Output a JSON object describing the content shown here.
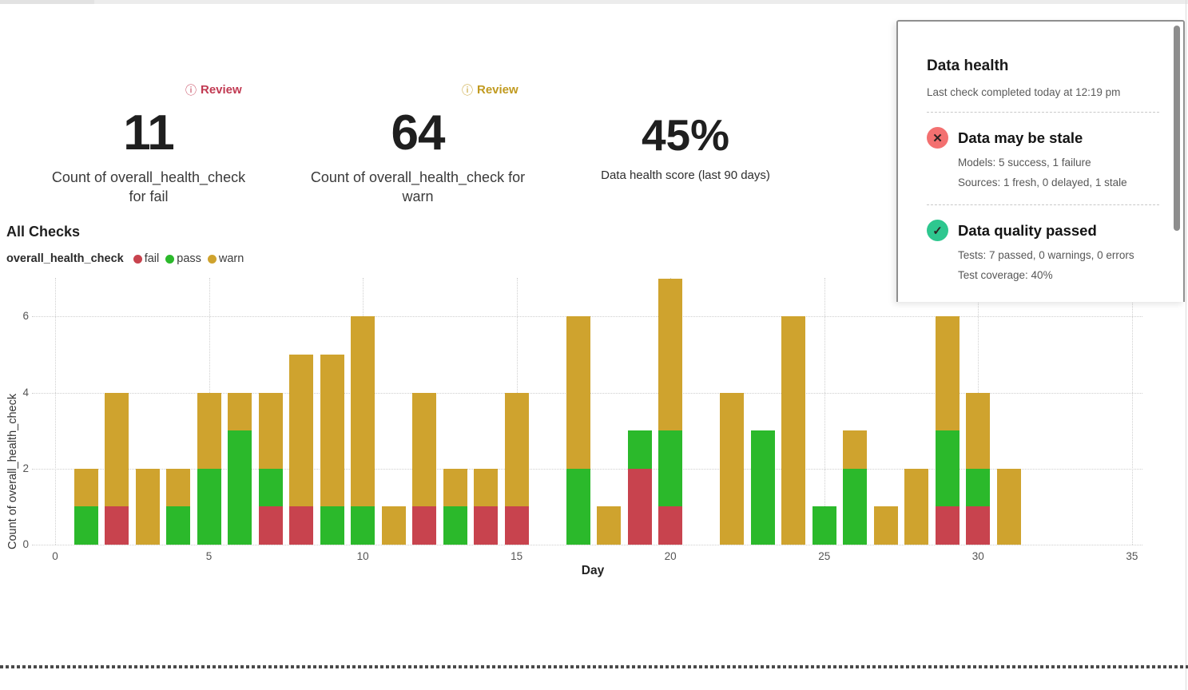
{
  "kpis": [
    {
      "badge": "Review",
      "badge_color": "#c13a52",
      "value": "11",
      "caption": "Count of overall_health_check for fail"
    },
    {
      "badge": "Review",
      "badge_color": "#c19a1f",
      "value": "64",
      "caption": "Count of overall_health_check for warn"
    },
    {
      "value": "45%",
      "caption": "Data health score (last 90 days)"
    }
  ],
  "section": {
    "title": "All Checks",
    "legend_title": "overall_health_check",
    "legend": [
      {
        "label": "fail",
        "color": "#c8434e"
      },
      {
        "label": "pass",
        "color": "#2bb92b"
      },
      {
        "label": "warn",
        "color": "#cfa32e"
      }
    ]
  },
  "chart_data": {
    "type": "bar",
    "stacked": true,
    "title": "All Checks",
    "xlabel": "Day",
    "ylabel": "Count of overall_health_check",
    "x": [
      1,
      2,
      3,
      4,
      5,
      6,
      7,
      8,
      9,
      10,
      11,
      12,
      13,
      14,
      15,
      16,
      17,
      18,
      19,
      20,
      21,
      22,
      23,
      24,
      25,
      26,
      27,
      28,
      29,
      30,
      31
    ],
    "series": [
      {
        "name": "fail",
        "color": "#c8434e",
        "values": [
          0,
          1,
          0,
          0,
          0,
          0,
          1,
          1,
          0,
          0,
          0,
          1,
          0,
          1,
          1,
          0,
          0,
          0,
          2,
          1,
          0,
          0,
          0,
          0,
          0,
          0,
          0,
          0,
          1,
          1,
          0
        ]
      },
      {
        "name": "pass",
        "color": "#2bb92b",
        "values": [
          1,
          0,
          0,
          1,
          2,
          3,
          1,
          0,
          1,
          1,
          0,
          0,
          1,
          0,
          0,
          0,
          2,
          0,
          1,
          2,
          0,
          0,
          3,
          0,
          1,
          2,
          0,
          0,
          2,
          1,
          0
        ]
      },
      {
        "name": "warn",
        "color": "#cfa32e",
        "values": [
          1,
          3,
          2,
          1,
          2,
          1,
          2,
          4,
          4,
          5,
          1,
          3,
          1,
          1,
          3,
          0,
          4,
          1,
          0,
          4,
          0,
          4,
          0,
          6,
          0,
          1,
          1,
          2,
          3,
          2,
          2
        ]
      }
    ],
    "xticks": [
      0,
      5,
      10,
      15,
      20,
      25,
      30,
      35
    ],
    "yticks": [
      0,
      2,
      4,
      6
    ],
    "xlim": [
      0,
      35.5
    ],
    "ylim": [
      0,
      7.2
    ],
    "grid": "dotted",
    "legend_position": "top-left"
  },
  "panel": {
    "title": "Data health",
    "subtitle": "Last check completed today at 12:19 pm",
    "sections": [
      {
        "icon": "x-circle-icon",
        "icon_color": "#f37070",
        "icon_glyph": "✕",
        "title": "Data may be stale",
        "line1": "Models: 5 success, 1 failure",
        "line2": "Sources: 1 fresh, 0 delayed, 1 stale"
      },
      {
        "icon": "check-circle-icon",
        "icon_color": "#2ec78f",
        "icon_glyph": "✓",
        "title": "Data quality passed",
        "line1": "Tests: 7 passed, 0 warnings, 0 errors",
        "line2": "Test coverage: 40%"
      }
    ]
  }
}
